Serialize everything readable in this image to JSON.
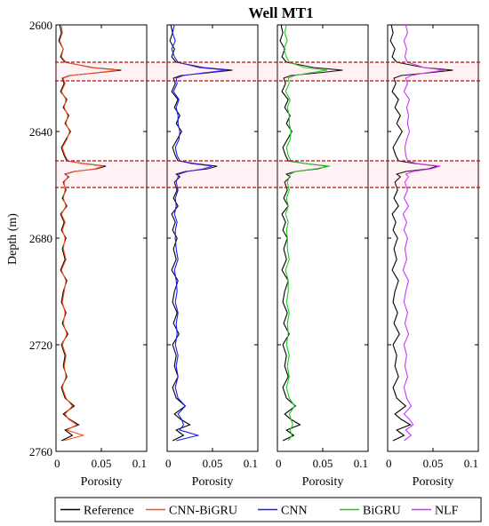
{
  "title": "Well MT1",
  "ylabel": "Depth (m)",
  "xlabel": "Porosity",
  "chart_data": {
    "type": "line",
    "title": "Well MT1",
    "ylabel": "Depth (m)",
    "xlabel": "Porosity",
    "ylim": [
      2600,
      2760
    ],
    "y_reversed": true,
    "xlim": [
      0,
      0.1
    ],
    "y_ticks": [
      2600,
      2640,
      2680,
      2720,
      2760
    ],
    "x_ticks": [
      0,
      0.05,
      0.1
    ],
    "x_tick_labels": [
      "0",
      "0.05",
      "0.1"
    ],
    "grid": false,
    "legend_position": "bottom",
    "highlight_depth_ranges": [
      [
        2614,
        2621
      ],
      [
        2651,
        2661
      ]
    ],
    "reference": {
      "name": "Reference",
      "color": "#000000",
      "depth": [
        2600,
        2603,
        2606,
        2609,
        2612,
        2614,
        2616,
        2617,
        2618,
        2619,
        2620,
        2622,
        2625,
        2628,
        2631,
        2634,
        2637,
        2640,
        2643,
        2646,
        2649,
        2651,
        2652,
        2653,
        2654,
        2655,
        2656,
        2657,
        2659,
        2662,
        2665,
        2668,
        2671,
        2674,
        2677,
        2680,
        2684,
        2688,
        2692,
        2696,
        2700,
        2704,
        2708,
        2712,
        2716,
        2720,
        2724,
        2728,
        2732,
        2736,
        2740,
        2743,
        2746,
        2748,
        2750,
        2752,
        2754,
        2756
      ],
      "porosity": [
        0.004,
        0.006,
        0.003,
        0.008,
        0.005,
        0.01,
        0.04,
        0.072,
        0.045,
        0.015,
        0.007,
        0.009,
        0.005,
        0.012,
        0.008,
        0.014,
        0.01,
        0.016,
        0.011,
        0.006,
        0.009,
        0.012,
        0.03,
        0.055,
        0.045,
        0.02,
        0.01,
        0.014,
        0.008,
        0.011,
        0.007,
        0.012,
        0.005,
        0.009,
        0.006,
        0.011,
        0.007,
        0.01,
        0.005,
        0.012,
        0.008,
        0.006,
        0.011,
        0.007,
        0.013,
        0.006,
        0.01,
        0.008,
        0.012,
        0.006,
        0.01,
        0.02,
        0.008,
        0.015,
        0.025,
        0.01,
        0.018,
        0.006
      ]
    },
    "series": [
      {
        "name": "CNN-BiGRU",
        "color": "#ff4d1a",
        "depth": [
          2600,
          2603,
          2606,
          2609,
          2612,
          2614,
          2616,
          2617,
          2618,
          2619,
          2620,
          2622,
          2625,
          2628,
          2631,
          2634,
          2637,
          2640,
          2643,
          2646,
          2649,
          2651,
          2652,
          2653,
          2654,
          2655,
          2656,
          2657,
          2659,
          2662,
          2665,
          2668,
          2671,
          2674,
          2677,
          2680,
          2684,
          2688,
          2692,
          2696,
          2700,
          2704,
          2708,
          2712,
          2716,
          2720,
          2724,
          2728,
          2732,
          2736,
          2740,
          2743,
          2746,
          2748,
          2750,
          2752,
          2754,
          2756
        ],
        "porosity": [
          0.006,
          0.007,
          0.004,
          0.008,
          0.006,
          0.011,
          0.038,
          0.068,
          0.043,
          0.016,
          0.008,
          0.01,
          0.006,
          0.011,
          0.009,
          0.013,
          0.011,
          0.015,
          0.012,
          0.007,
          0.01,
          0.013,
          0.028,
          0.052,
          0.043,
          0.021,
          0.011,
          0.013,
          0.009,
          0.01,
          0.008,
          0.011,
          0.006,
          0.01,
          0.007,
          0.01,
          0.008,
          0.011,
          0.006,
          0.011,
          0.009,
          0.007,
          0.01,
          0.008,
          0.012,
          0.007,
          0.011,
          0.009,
          0.011,
          0.007,
          0.011,
          0.018,
          0.01,
          0.014,
          0.023,
          0.012,
          0.03,
          0.008
        ]
      },
      {
        "name": "CNN",
        "color": "#1a1aff",
        "depth": [
          2600,
          2603,
          2606,
          2609,
          2612,
          2614,
          2616,
          2617,
          2618,
          2619,
          2620,
          2622,
          2625,
          2628,
          2631,
          2634,
          2637,
          2640,
          2643,
          2646,
          2649,
          2651,
          2652,
          2653,
          2654,
          2655,
          2656,
          2657,
          2659,
          2662,
          2665,
          2668,
          2671,
          2674,
          2677,
          2680,
          2684,
          2688,
          2692,
          2696,
          2700,
          2704,
          2708,
          2712,
          2716,
          2720,
          2724,
          2728,
          2732,
          2736,
          2740,
          2743,
          2746,
          2748,
          2750,
          2752,
          2754,
          2756
        ],
        "porosity": [
          0.008,
          0.006,
          0.009,
          0.005,
          0.008,
          0.012,
          0.035,
          0.066,
          0.04,
          0.018,
          0.01,
          0.011,
          0.007,
          0.013,
          0.01,
          0.012,
          0.012,
          0.014,
          0.013,
          0.009,
          0.011,
          0.014,
          0.026,
          0.05,
          0.04,
          0.022,
          0.013,
          0.012,
          0.01,
          0.012,
          0.009,
          0.01,
          0.008,
          0.011,
          0.009,
          0.009,
          0.01,
          0.012,
          0.008,
          0.01,
          0.011,
          0.009,
          0.012,
          0.01,
          0.011,
          0.009,
          0.012,
          0.01,
          0.012,
          0.009,
          0.012,
          0.02,
          0.012,
          0.016,
          0.018,
          0.014,
          0.034,
          0.01
        ]
      },
      {
        "name": "BiGRU",
        "color": "#1acc1a",
        "depth": [
          2600,
          2603,
          2606,
          2609,
          2612,
          2614,
          2616,
          2617,
          2618,
          2619,
          2620,
          2622,
          2625,
          2628,
          2631,
          2634,
          2637,
          2640,
          2643,
          2646,
          2649,
          2651,
          2652,
          2653,
          2654,
          2655,
          2656,
          2657,
          2659,
          2662,
          2665,
          2668,
          2671,
          2674,
          2677,
          2680,
          2684,
          2688,
          2692,
          2696,
          2700,
          2704,
          2708,
          2712,
          2716,
          2720,
          2724,
          2728,
          2732,
          2736,
          2740,
          2743,
          2746,
          2748,
          2750,
          2752,
          2754,
          2756
        ],
        "porosity": [
          0.01,
          0.008,
          0.011,
          0.007,
          0.01,
          0.013,
          0.03,
          0.055,
          0.036,
          0.019,
          0.012,
          0.013,
          0.009,
          0.014,
          0.011,
          0.013,
          0.013,
          0.015,
          0.014,
          0.01,
          0.012,
          0.015,
          0.03,
          0.058,
          0.042,
          0.02,
          0.014,
          0.013,
          0.011,
          0.013,
          0.01,
          0.012,
          0.009,
          0.012,
          0.01,
          0.011,
          0.011,
          0.013,
          0.009,
          0.012,
          0.012,
          0.01,
          0.013,
          0.011,
          0.012,
          0.01,
          0.013,
          0.011,
          0.013,
          0.01,
          0.013,
          0.019,
          0.013,
          0.015,
          0.017,
          0.014,
          0.016,
          0.012
        ]
      },
      {
        "name": "NLF",
        "color": "#cc33ff",
        "depth": [
          2600,
          2603,
          2606,
          2609,
          2612,
          2614,
          2616,
          2617,
          2618,
          2619,
          2620,
          2622,
          2625,
          2628,
          2631,
          2634,
          2637,
          2640,
          2643,
          2646,
          2649,
          2651,
          2652,
          2653,
          2654,
          2655,
          2656,
          2657,
          2659,
          2662,
          2665,
          2668,
          2671,
          2674,
          2677,
          2680,
          2684,
          2688,
          2692,
          2696,
          2700,
          2704,
          2708,
          2712,
          2716,
          2720,
          2724,
          2728,
          2732,
          2736,
          2740,
          2743,
          2746,
          2748,
          2750,
          2752,
          2754,
          2756
        ],
        "porosity": [
          0.02,
          0.022,
          0.018,
          0.021,
          0.019,
          0.022,
          0.04,
          0.062,
          0.042,
          0.026,
          0.02,
          0.022,
          0.018,
          0.024,
          0.021,
          0.023,
          0.022,
          0.024,
          0.021,
          0.019,
          0.02,
          0.022,
          0.032,
          0.058,
          0.048,
          0.028,
          0.02,
          0.023,
          0.019,
          0.022,
          0.018,
          0.023,
          0.017,
          0.021,
          0.018,
          0.022,
          0.019,
          0.021,
          0.017,
          0.023,
          0.02,
          0.018,
          0.022,
          0.019,
          0.023,
          0.018,
          0.021,
          0.019,
          0.022,
          0.018,
          0.021,
          0.026,
          0.018,
          0.024,
          0.028,
          0.02,
          0.026,
          0.018
        ]
      }
    ]
  }
}
